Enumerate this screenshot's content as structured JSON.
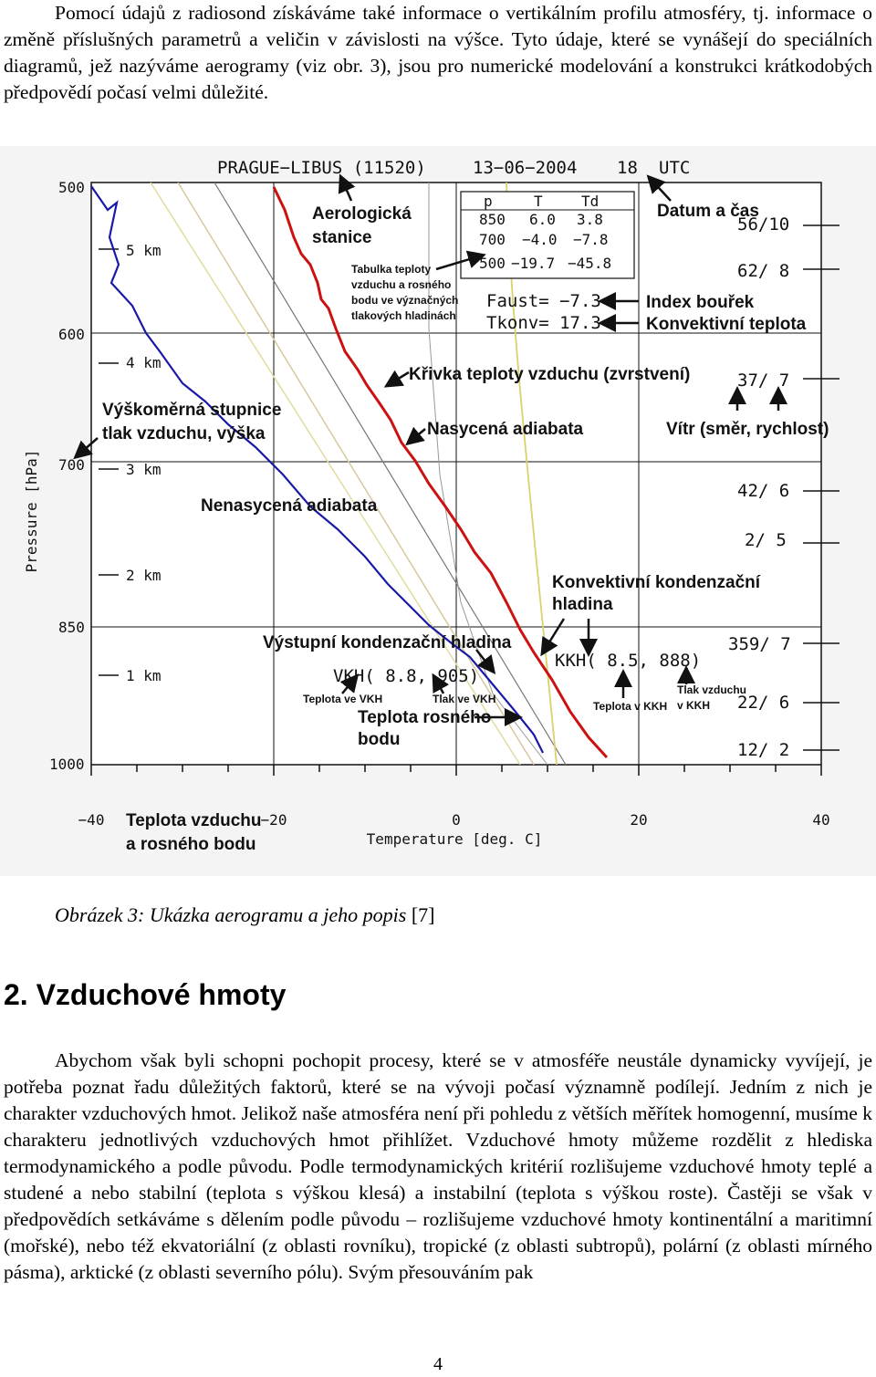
{
  "intro": {
    "first": "Pomocí údajů z radiosond získáváme také informace o vertikálním profilu atmosféry, tj. informace o změně příslušných parametrů a veličin v závislosti na výšce. Tyto údaje, které se vynášejí do speciálních diagramů, jež nazýváme aerogramy (viz obr. 3), jsou pro numerické modelování a konstrukci krátkodobých předpovědí počasí velmi důležité."
  },
  "figure": {
    "header": {
      "station": "PRAGUE−LIBUS (11520)",
      "date": "13−06−2004",
      "hour": "18",
      "utc": "UTC"
    },
    "y_axis_title": "Pressure [hPa]",
    "x_axis_title": "Temperature [deg. C]",
    "pressure_labels": [
      "500",
      "600",
      "700",
      "850",
      "1000"
    ],
    "height_labels": [
      "5 km",
      "4 km",
      "3 km",
      "2 km",
      "1 km"
    ],
    "temp_labels": [
      "−40",
      "−20",
      "0",
      "20",
      "40"
    ],
    "table": {
      "headers": [
        "p",
        "T",
        "Td"
      ],
      "rows": [
        [
          "850",
          "6.0",
          "3.8"
        ],
        [
          "700",
          "−4.0",
          "−7.8"
        ],
        [
          "500",
          "−19.7",
          "−45.8"
        ]
      ]
    },
    "faust": "Faust=  −7.3",
    "tkonv": "Tkonv=  17.3",
    "vkh": "VKH(  8.8, 905)",
    "kkh": "KKH(  8.5, 888)",
    "winds": [
      "56/10",
      "62/ 8",
      "37/ 7",
      "42/ 6",
      "2/ 5",
      "359/ 7",
      "22/ 6",
      "12/ 2"
    ],
    "annotations": {
      "station_1": "Aerologická",
      "station_2": "stanice",
      "datetime": "Datum a čas",
      "table_note_1": "Tabulka teploty",
      "table_note_2": "vzduchu a rosného",
      "table_note_3": "bodu ve význačných",
      "table_note_4": "tlakových hladinách",
      "storm_index": "Index bouřek",
      "conv_temp": "Konvektivní teplota",
      "temp_curve": "Křivka teploty vzduchu (zvrstvení)",
      "height_scale_1": "Výškoměrná stupnice",
      "height_scale_2": "tlak vzduchu, výška",
      "saturated": "Nasycená adiabata",
      "wind": "Vítr (směr, rychlost)",
      "dry": "Nenasycená adiabata",
      "kkh_1": "Konvektivní kondenzační",
      "kkh_2": "hladina",
      "vkh_title": "Výstupní kondenzační hladina",
      "vkh_temp": "Teplota ve VKH",
      "vkh_press": "Tlak ve VKH",
      "dew_1": "Teplota rosného",
      "dew_2": "bodu",
      "kkh_temp": "Teplota v KKH",
      "kkh_press_1": "Tlak vzduchu",
      "kkh_press_2": "v KKH",
      "airdew_1": "Teplota vzduchu",
      "airdew_2": "a rosného bodu"
    },
    "colors": {
      "temperature": "#cc1111",
      "dewpoint": "#1a1aa8",
      "saturated_adiabat": "#d8d26a",
      "dry_adiabat": "#d8c8a0"
    }
  },
  "caption": {
    "text": "Obrázek 3: Ukázka aerogramu a jeho popis",
    "ref": " [7]"
  },
  "heading": "2. Vzduchové hmoty",
  "body": {
    "text": "Abychom však byli schopni pochopit procesy, které se v atmosféře neustále dynamicky vyvíjejí, je potřeba poznat řadu důležitých faktorů, které se na vývoji počasí významně podílejí. Jedním z nich je charakter vzduchových hmot. Jelikož naše atmosféra není při pohledu z větších měřítek homogenní, musíme k charakteru jednotlivých vzduchových hmot přihlížet. Vzduchové hmoty můžeme rozdělit z hlediska termodynamického a podle původu. Podle termodynamických kritérií rozlišujeme vzduchové hmoty teplé a studené a nebo stabilní (teplota s výškou klesá) a instabilní (teplota s výškou roste). Častěji se však v předpovědích setkáváme s dělením podle původu – rozlišujeme vzduchové hmoty kontinentální a maritimní (mořské), nebo též ekvatoriální (z oblasti rovníku), tropické (z oblasti subtropů), polární (z oblasti mírného pásma), arktické (z oblasti severního pólu). Svým přesouváním pak"
  },
  "page_number": "4"
}
